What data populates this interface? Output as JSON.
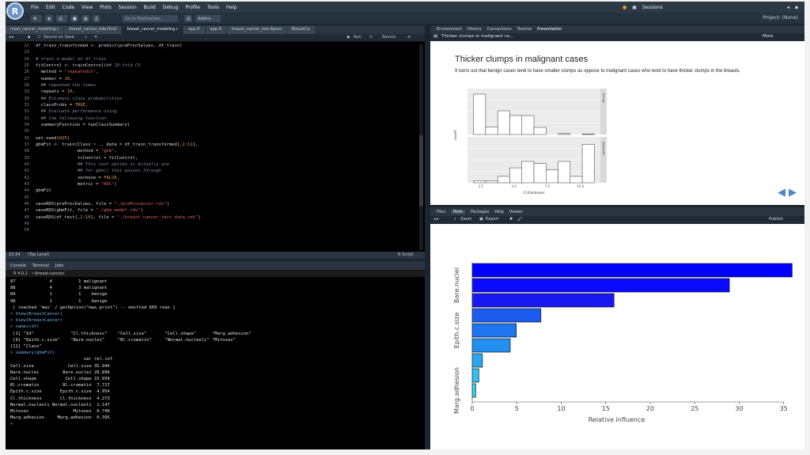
{
  "menu": {
    "logo": "R",
    "items": [
      "File",
      "Edit",
      "Code",
      "View",
      "Plots",
      "Session",
      "Build",
      "Debug",
      "Profile",
      "Tools",
      "Help"
    ],
    "sessions": "Sessions"
  },
  "toolbar": {
    "goto_placeholder": "Go to file/function",
    "addins": "Addins",
    "project": "Project: (None)"
  },
  "editor": {
    "tabs": [
      "mast_cancer_modeling.r",
      "breast_cancer_eda.Rmd",
      "breast_cancer_modeling.r",
      "app.R",
      "app.R",
      "breast_cancer_eda.Rpres",
      "BreastCa"
    ],
    "source_on_save": "Source on Save",
    "run": "Run",
    "source": "Source",
    "status_pos": "10:34",
    "status_scope": "(Top Level)",
    "status_type": "R Script",
    "line_numbers": [
      "22",
      "23",
      "24",
      "25",
      "26",
      "27",
      "28",
      "29",
      "30",
      "31",
      "32",
      "33",
      "34",
      "35",
      "36",
      "37",
      "38",
      "39",
      "40",
      "41",
      "42",
      "43",
      "44",
      "45",
      "46",
      "47",
      "48",
      "49",
      "50"
    ],
    "code_lines": [
      [
        [
          "w",
          "df_train_transformed <- predict(preProcValues, df_train)"
        ]
      ],
      [
        [
          "w",
          ""
        ]
      ],
      [
        [
          "c",
          "# train a model on df_train"
        ]
      ],
      [
        [
          "w",
          "fitControl <- trainControl("
        ],
        [
          "c",
          "## 10-fold CV"
        ]
      ],
      [
        [
          "w",
          "  method = "
        ],
        [
          "s",
          "\"repeatedcv\""
        ],
        [
          "w",
          ","
        ]
      ],
      [
        [
          "w",
          "  number = "
        ],
        [
          "n",
          "10"
        ],
        [
          "w",
          ","
        ]
      ],
      [
        [
          "c",
          "  ## repeated ten times"
        ]
      ],
      [
        [
          "w",
          "  repeats = "
        ],
        [
          "n",
          "10"
        ],
        [
          "w",
          ","
        ]
      ],
      [
        [
          "c",
          "  ## Estimate class probabilities"
        ]
      ],
      [
        [
          "w",
          "  classProbs = "
        ],
        [
          "n",
          "TRUE"
        ],
        [
          "w",
          ","
        ]
      ],
      [
        [
          "c",
          "  ## Evaluate performance using"
        ]
      ],
      [
        [
          "c",
          "  ## the following function"
        ]
      ],
      [
        [
          "w",
          "  summaryFunction = twoClassSummary)"
        ]
      ],
      [
        [
          "w",
          ""
        ]
      ],
      [
        [
          "w",
          "set.seed("
        ],
        [
          "n",
          "825"
        ],
        [
          "w",
          ")"
        ]
      ],
      [
        [
          "w",
          "gbmFit <- train(Class ~ ., data = df_train_transformed[,"
        ],
        [
          "n",
          "2:11"
        ],
        [
          "w",
          "],"
        ]
      ],
      [
        [
          "w",
          "                method = "
        ],
        [
          "s",
          "\"gbm\""
        ],
        [
          "w",
          ","
        ]
      ],
      [
        [
          "w",
          "                trControl = fitControl,"
        ]
      ],
      [
        [
          "c",
          "                ## This last option is actually one"
        ]
      ],
      [
        [
          "c",
          "                ## for gbm() that passes through"
        ]
      ],
      [
        [
          "w",
          "                verbose = "
        ],
        [
          "n",
          "FALSE"
        ],
        [
          "w",
          ","
        ]
      ],
      [
        [
          "w",
          "                metric = "
        ],
        [
          "s",
          "\"ROC\""
        ],
        [
          "w",
          ")"
        ]
      ],
      [
        [
          "w",
          "gbmFit"
        ]
      ],
      [
        [
          "w",
          ""
        ]
      ],
      [
        [
          "w",
          "saveRDS(preProcValues, file = "
        ],
        [
          "s",
          "\"./preProcessor.rds\""
        ],
        [
          "w",
          ")"
        ]
      ],
      [
        [
          "w",
          "saveRDS(gbmFit, file = "
        ],
        [
          "s",
          "\"./gbm_model.rds\""
        ],
        [
          "w",
          ")"
        ]
      ],
      [
        [
          "w",
          "saveRDS(df_test[,"
        ],
        [
          "n",
          "1:10"
        ],
        [
          "w",
          "], file = "
        ],
        [
          "s",
          "\"./breast_cancer_test_data.rds\""
        ],
        [
          "w",
          ")"
        ]
      ],
      [
        [
          "w",
          ""
        ]
      ],
      [
        [
          "w",
          ""
        ]
      ]
    ]
  },
  "console": {
    "tabs": [
      "Console",
      "Terminal",
      "Jobs"
    ],
    "path": "R 4.0.2 · ~/breast-cancer/",
    "lines": [
      [
        "w",
        "87             4          1 malignant"
      ],
      [
        "w",
        "88             4          3 malignant"
      ],
      [
        "w",
        "89             1          1    benign"
      ],
      [
        "w",
        "90             1          1    benign"
      ],
      [
        "w",
        " [ reached 'max' / getOption(\"max.print\") -- omitted 609 rows ]"
      ],
      [
        "b",
        "> View(BreastCancer)"
      ],
      [
        "b",
        "> View(BreastCancer)"
      ],
      [
        "b",
        "> names(df)"
      ],
      [
        "w",
        " [1] \"Id\"              \"Cl.thickness\"    \"Cell.size\"       \"Cell.shape\"      \"Marg.adhesion\""
      ],
      [
        "w",
        " [6] \"Epith.c.size\"    \"Bare.nuclei\"     \"Bl.cromatin\"     \"Normal.nucleoli\" \"Mitoses\""
      ],
      [
        "w",
        "[11] \"Class\""
      ],
      [
        "b",
        "> summary(gbmFit)"
      ],
      [
        "w",
        "                            var rel.inf"
      ],
      [
        "w",
        "Cell.size             Cell.size 35.944"
      ],
      [
        "w",
        "Bare.nuclei         Bare.nuclei 28.896"
      ],
      [
        "w",
        "Cell.shape           Cell.shape 15.934"
      ],
      [
        "w",
        "Bl.cromatin         Bl.cromatin  7.717"
      ],
      [
        "w",
        "Epith.c.size       Epith.c.size  4.954"
      ],
      [
        "w",
        "Cl.thickness       Cl.thickness  4.273"
      ],
      [
        "w",
        "Normal.nucleoli Normal.nucleoli  1.147"
      ],
      [
        "w",
        "Mitoses                 Mitoses  0.740"
      ],
      [
        "w",
        "Marg.adhesion     Marg.adhesion  0.395"
      ]
    ]
  },
  "presentation": {
    "tabs": [
      "Environment",
      "History",
      "Connections",
      "Tutorial",
      "Presentation"
    ],
    "subtitle_bar": "Thicker clumps in malignant ca...",
    "more": "More",
    "slide_title": "Thicker clumps in malignant cases",
    "slide_text": "It turns out that benign cases tend to have smaller clumps as oppose to malignant cases who tend to have thicker clumps in the breasts.",
    "nav_prev": "◀",
    "nav_next": "▶"
  },
  "plots_pane": {
    "tabs": [
      "Files",
      "Plots",
      "Packages",
      "Help",
      "Viewer"
    ],
    "zoom": "Zoom",
    "export": "Export",
    "publish": "Publish"
  },
  "chart_data": [
    {
      "type": "bar",
      "facets": [
        "benign",
        "malignant"
      ],
      "xlabel": "Cl.thickness",
      "ylabel": "count",
      "x_ticks": [
        "2.5",
        "5.0",
        "7.5",
        "10.0"
      ],
      "benign_values": [
        85,
        16,
        50,
        40,
        40,
        15,
        0,
        2,
        0,
        1
      ],
      "malignant_values": [
        1,
        1,
        3,
        7,
        10,
        9,
        6,
        10,
        3,
        18
      ]
    },
    {
      "type": "bar",
      "orientation": "horizontal",
      "categories": [
        "Cell.size",
        "Bare.nuclei",
        "Cell.shape",
        "Bl.cromatin",
        "Epith.c.size",
        "Cl.thickness",
        "Normal.nucleoli",
        "Mitoses",
        "Marg.adhesion"
      ],
      "visible_category_labels": [
        "Bare.nuclei",
        "Epith.c.size",
        "Marg.adhesion"
      ],
      "values": [
        35.944,
        28.896,
        15.934,
        7.717,
        4.954,
        4.273,
        1.147,
        0.74,
        0.395
      ],
      "xlabel": "Relative influence",
      "x_ticks": [
        0,
        5,
        10,
        15,
        20,
        25,
        30,
        35
      ],
      "xlim": [
        0,
        36
      ],
      "colors": [
        "#0000ff",
        "#0a0aff",
        "#1818f0",
        "#1b5cee",
        "#1f74ef",
        "#258ff0",
        "#2aa6f1",
        "#2fc0f3",
        "#35d2f5"
      ]
    }
  ]
}
